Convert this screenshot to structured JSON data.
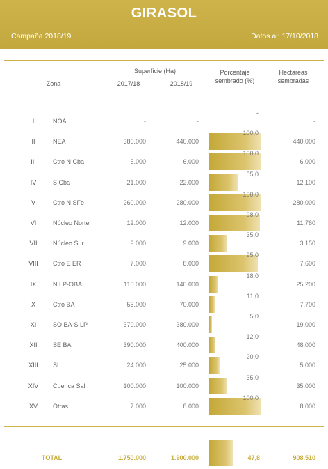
{
  "header": {
    "title": "GIRASOL",
    "campaign": "Campaña 2018/19",
    "date": "Datos al: 17/10/2018"
  },
  "columns": {
    "zona": "Zona",
    "superficie": "Superficie (Ha)",
    "year1": "2017/18",
    "year2": "2018/19",
    "pct_line1": "Porcentaje",
    "pct_line2": "sembrado (%)",
    "ha_line1": "Hectareas",
    "ha_line2": "sembradas"
  },
  "rows": [
    {
      "num": "I",
      "zone": "NOA",
      "v1": "-",
      "v2": "-",
      "pct": "-",
      "pct_value": 0,
      "ha": "-"
    },
    {
      "num": "II",
      "zone": "NEA",
      "v1": "380.000",
      "v2": "440.000",
      "pct": "100,0",
      "pct_value": 100,
      "ha": "440.000"
    },
    {
      "num": "III",
      "zone": "Ctro N Cba",
      "v1": "5.000",
      "v2": "6.000",
      "pct": "100,0",
      "pct_value": 100,
      "ha": "6.000"
    },
    {
      "num": "IV",
      "zone": "S Cba",
      "v1": "21.000",
      "v2": "22.000",
      "pct": "55,0",
      "pct_value": 55,
      "ha": "12.100"
    },
    {
      "num": "V",
      "zone": "Ctro N SFe",
      "v1": "260.000",
      "v2": "280.000",
      "pct": "100,0",
      "pct_value": 100,
      "ha": "280.000"
    },
    {
      "num": "VI",
      "zone": "Núcleo Norte",
      "v1": "12.000",
      "v2": "12.000",
      "pct": "98,0",
      "pct_value": 98,
      "ha": "11.760"
    },
    {
      "num": "VII",
      "zone": "Núcleo Sur",
      "v1": "9.000",
      "v2": "9.000",
      "pct": "35,0",
      "pct_value": 35,
      "ha": "3.150"
    },
    {
      "num": "VIII",
      "zone": "Ctro E ER",
      "v1": "7.000",
      "v2": "8.000",
      "pct": "95,0",
      "pct_value": 95,
      "ha": "7.600"
    },
    {
      "num": "IX",
      "zone": "N LP-OBA",
      "v1": "110.000",
      "v2": "140.000",
      "pct": "18,0",
      "pct_value": 18,
      "ha": "25.200"
    },
    {
      "num": "X",
      "zone": "Ctro BA",
      "v1": "55.000",
      "v2": "70.000",
      "pct": "11,0",
      "pct_value": 11,
      "ha": "7.700"
    },
    {
      "num": "XI",
      "zone": "SO BA-S LP",
      "v1": "370.000",
      "v2": "380.000",
      "pct": "5,0",
      "pct_value": 5,
      "ha": "19.000"
    },
    {
      "num": "XII",
      "zone": "SE BA",
      "v1": "390.000",
      "v2": "400.000",
      "pct": "12,0",
      "pct_value": 12,
      "ha": "48.000"
    },
    {
      "num": "XIII",
      "zone": "SL",
      "v1": "24.000",
      "v2": "25.000",
      "pct": "20,0",
      "pct_value": 20,
      "ha": "5.000"
    },
    {
      "num": "XIV",
      "zone": "Cuenca Sal",
      "v1": "100.000",
      "v2": "100.000",
      "pct": "35,0",
      "pct_value": 35,
      "ha": "35.000"
    },
    {
      "num": "XV",
      "zone": "Otras",
      "v1": "7.000",
      "v2": "8.000",
      "pct": "100,0",
      "pct_value": 100,
      "ha": "8.000"
    }
  ],
  "total": {
    "label": "TOTAL",
    "v1": "1.750.000",
    "v2": "1.900.000",
    "pct": "47,8",
    "pct_value": 47.8,
    "ha": "908.510"
  },
  "colors": {
    "accent": "#c9ad3c",
    "header_bg": "#c7ad42"
  }
}
